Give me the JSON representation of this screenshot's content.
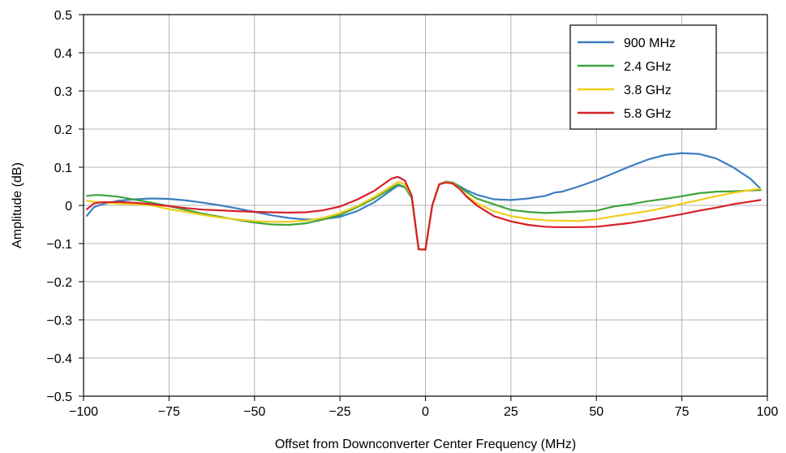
{
  "chart_data": {
    "type": "line",
    "title": "",
    "xlabel": "Offset from Downconverter Center Frequency (MHz)",
    "ylabel": "Amplitude (dB)",
    "xlim": [
      -100,
      100
    ],
    "ylim": [
      -0.5,
      0.5
    ],
    "x_ticks": [
      -100,
      -75,
      -50,
      -25,
      0,
      25,
      50,
      75,
      100
    ],
    "x_tick_labels": [
      "−100",
      "−75",
      "−50",
      "−25",
      "0",
      "25",
      "50",
      "75",
      "100"
    ],
    "y_ticks": [
      -0.5,
      -0.4,
      -0.3,
      -0.2,
      -0.1,
      0,
      0.1,
      0.2,
      0.3,
      0.4,
      0.5
    ],
    "y_tick_labels": [
      "−0.5",
      "−0.4",
      "−0.3",
      "−0.2",
      "−0.1",
      "0",
      "0.1",
      "0.2",
      "0.3",
      "0.4",
      "0.5"
    ],
    "grid": true,
    "legend_position": "top-right",
    "series": [
      {
        "name": "900 MHz",
        "color": "#3B7EC1",
        "x": [
          -99,
          -97,
          -95,
          -90,
          -85,
          -80,
          -75,
          -70,
          -65,
          -60,
          -55,
          -50,
          -45,
          -40,
          -35,
          -30,
          -25,
          -20,
          -15,
          -10,
          -8,
          -6,
          -4,
          -2,
          0,
          2,
          4,
          6,
          8,
          10,
          12,
          15,
          20,
          25,
          30,
          35,
          38,
          40,
          45,
          50,
          55,
          60,
          65,
          70,
          75,
          80,
          85,
          90,
          95,
          98
        ],
        "y": [
          -0.027,
          -0.005,
          0.002,
          0.012,
          0.016,
          0.018,
          0.017,
          0.013,
          0.007,
          0.0,
          -0.008,
          -0.017,
          -0.026,
          -0.033,
          -0.037,
          -0.036,
          -0.03,
          -0.015,
          0.008,
          0.04,
          0.052,
          0.048,
          0.02,
          -0.115,
          -0.116,
          0.0,
          0.055,
          0.063,
          0.06,
          0.05,
          0.04,
          0.028,
          0.016,
          0.014,
          0.018,
          0.025,
          0.034,
          0.036,
          0.05,
          0.066,
          0.084,
          0.103,
          0.12,
          0.132,
          0.137,
          0.135,
          0.123,
          0.1,
          0.07,
          0.044
        ]
      },
      {
        "name": "2.4 GHz",
        "color": "#3FA33B",
        "x": [
          -99,
          -97,
          -95,
          -90,
          -85,
          -80,
          -75,
          -70,
          -65,
          -60,
          -55,
          -50,
          -45,
          -40,
          -35,
          -30,
          -25,
          -20,
          -15,
          -10,
          -8,
          -6,
          -4,
          -2,
          0,
          2,
          4,
          6,
          8,
          10,
          12,
          15,
          20,
          25,
          30,
          35,
          38,
          40,
          45,
          50,
          55,
          60,
          65,
          70,
          75,
          80,
          85,
          90,
          95,
          98
        ],
        "y": [
          0.025,
          0.027,
          0.027,
          0.023,
          0.015,
          0.007,
          -0.002,
          -0.012,
          -0.022,
          -0.03,
          -0.038,
          -0.045,
          -0.05,
          -0.051,
          -0.047,
          -0.037,
          -0.025,
          -0.005,
          0.018,
          0.045,
          0.055,
          0.048,
          0.02,
          -0.115,
          -0.116,
          0.0,
          0.055,
          0.062,
          0.06,
          0.048,
          0.035,
          0.018,
          0.003,
          -0.012,
          -0.017,
          -0.02,
          -0.019,
          -0.018,
          -0.016,
          -0.014,
          -0.003,
          0.003,
          0.011,
          0.017,
          0.024,
          0.032,
          0.036,
          0.037,
          0.039,
          0.04
        ]
      },
      {
        "name": "3.8 GHz",
        "color": "#F2CC1A",
        "x": [
          -99,
          -97,
          -95,
          -90,
          -85,
          -80,
          -75,
          -70,
          -65,
          -60,
          -55,
          -50,
          -45,
          -40,
          -35,
          -30,
          -25,
          -20,
          -15,
          -10,
          -8,
          -6,
          -4,
          -2,
          0,
          2,
          4,
          6,
          8,
          10,
          12,
          15,
          20,
          25,
          30,
          35,
          38,
          40,
          45,
          50,
          55,
          60,
          65,
          70,
          75,
          80,
          85,
          90,
          95,
          98
        ],
        "y": [
          0.012,
          0.01,
          0.008,
          0.005,
          0.003,
          0.0,
          -0.01,
          -0.017,
          -0.025,
          -0.032,
          -0.037,
          -0.041,
          -0.043,
          -0.043,
          -0.04,
          -0.033,
          -0.02,
          -0.002,
          0.022,
          0.05,
          0.062,
          0.055,
          0.025,
          -0.115,
          -0.116,
          0.0,
          0.055,
          0.062,
          0.058,
          0.044,
          0.026,
          0.006,
          -0.015,
          -0.028,
          -0.035,
          -0.039,
          -0.04,
          -0.04,
          -0.041,
          -0.036,
          -0.029,
          -0.022,
          -0.015,
          -0.006,
          0.004,
          0.014,
          0.024,
          0.033,
          0.04,
          0.044
        ]
      },
      {
        "name": "5.8 GHz",
        "color": "#D62027",
        "x": [
          -99,
          -97,
          -95,
          -90,
          -85,
          -80,
          -75,
          -70,
          -65,
          -60,
          -55,
          -50,
          -45,
          -40,
          -35,
          -30,
          -25,
          -20,
          -15,
          -10,
          -8,
          -6,
          -4,
          -2,
          0,
          2,
          4,
          6,
          8,
          10,
          12,
          15,
          20,
          25,
          30,
          35,
          38,
          40,
          45,
          50,
          55,
          60,
          65,
          70,
          75,
          80,
          85,
          90,
          95,
          98
        ],
        "y": [
          -0.01,
          0.005,
          0.008,
          0.009,
          0.007,
          0.003,
          -0.002,
          -0.007,
          -0.011,
          -0.013,
          -0.015,
          -0.017,
          -0.018,
          -0.019,
          -0.018,
          -0.013,
          -0.003,
          0.015,
          0.038,
          0.07,
          0.075,
          0.065,
          0.025,
          -0.115,
          -0.116,
          0.0,
          0.055,
          0.06,
          0.057,
          0.043,
          0.023,
          0.0,
          -0.028,
          -0.042,
          -0.051,
          -0.056,
          -0.057,
          -0.057,
          -0.057,
          -0.056,
          -0.051,
          -0.046,
          -0.039,
          -0.031,
          -0.023,
          -0.014,
          -0.006,
          0.003,
          0.01,
          0.014
        ]
      }
    ]
  }
}
